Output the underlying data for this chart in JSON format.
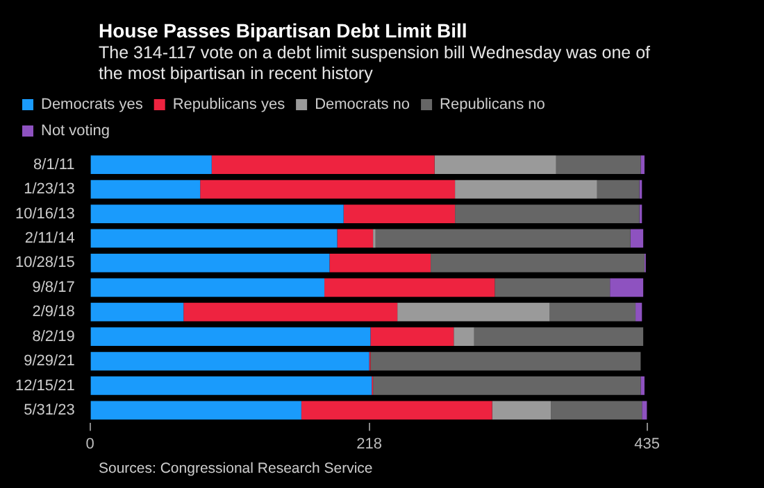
{
  "chart_data": {
    "type": "bar",
    "orientation": "horizontal",
    "stacked": true,
    "title": "House Passes Bipartisan Debt Limit Bill",
    "subtitle": "The 314-117 vote on a debt limit suspension bill Wednesday was one of the most bipartisan in recent history",
    "categories": [
      "8/1/11",
      "1/23/13",
      "10/16/13",
      "2/11/14",
      "10/28/15",
      "9/8/17",
      "2/9/18",
      "8/2/19",
      "9/29/21",
      "12/15/21",
      "5/31/23"
    ],
    "series": [
      {
        "name": "Democrats yes",
        "color": "#1a9bfc",
        "values": [
          95,
          86,
          198,
          193,
          187,
          183,
          73,
          219,
          218,
          220,
          165
        ]
      },
      {
        "name": "Republicans yes",
        "color": "#ee2340",
        "values": [
          174,
          199,
          87,
          28,
          79,
          133,
          167,
          65,
          1,
          1,
          149
        ]
      },
      {
        "name": "Democrats no",
        "color": "#9a9a9a",
        "values": [
          95,
          111,
          null,
          2,
          null,
          null,
          119,
          16,
          null,
          null,
          46
        ]
      },
      {
        "name": "Republicans no",
        "color": "#666666",
        "values": [
          66,
          33,
          144,
          199,
          167,
          90,
          67,
          132,
          211,
          209,
          71
        ]
      },
      {
        "name": "Not voting",
        "color": "#8e52c0",
        "values": [
          3,
          2,
          2,
          10,
          1,
          26,
          5,
          null,
          null,
          3,
          4
        ]
      }
    ],
    "xlim": [
      0,
      435
    ],
    "xticks": [
      0,
      218,
      435
    ],
    "grid": false,
    "legend": "top left",
    "annotations": [
      "Sources: Congressional Research Service"
    ]
  }
}
